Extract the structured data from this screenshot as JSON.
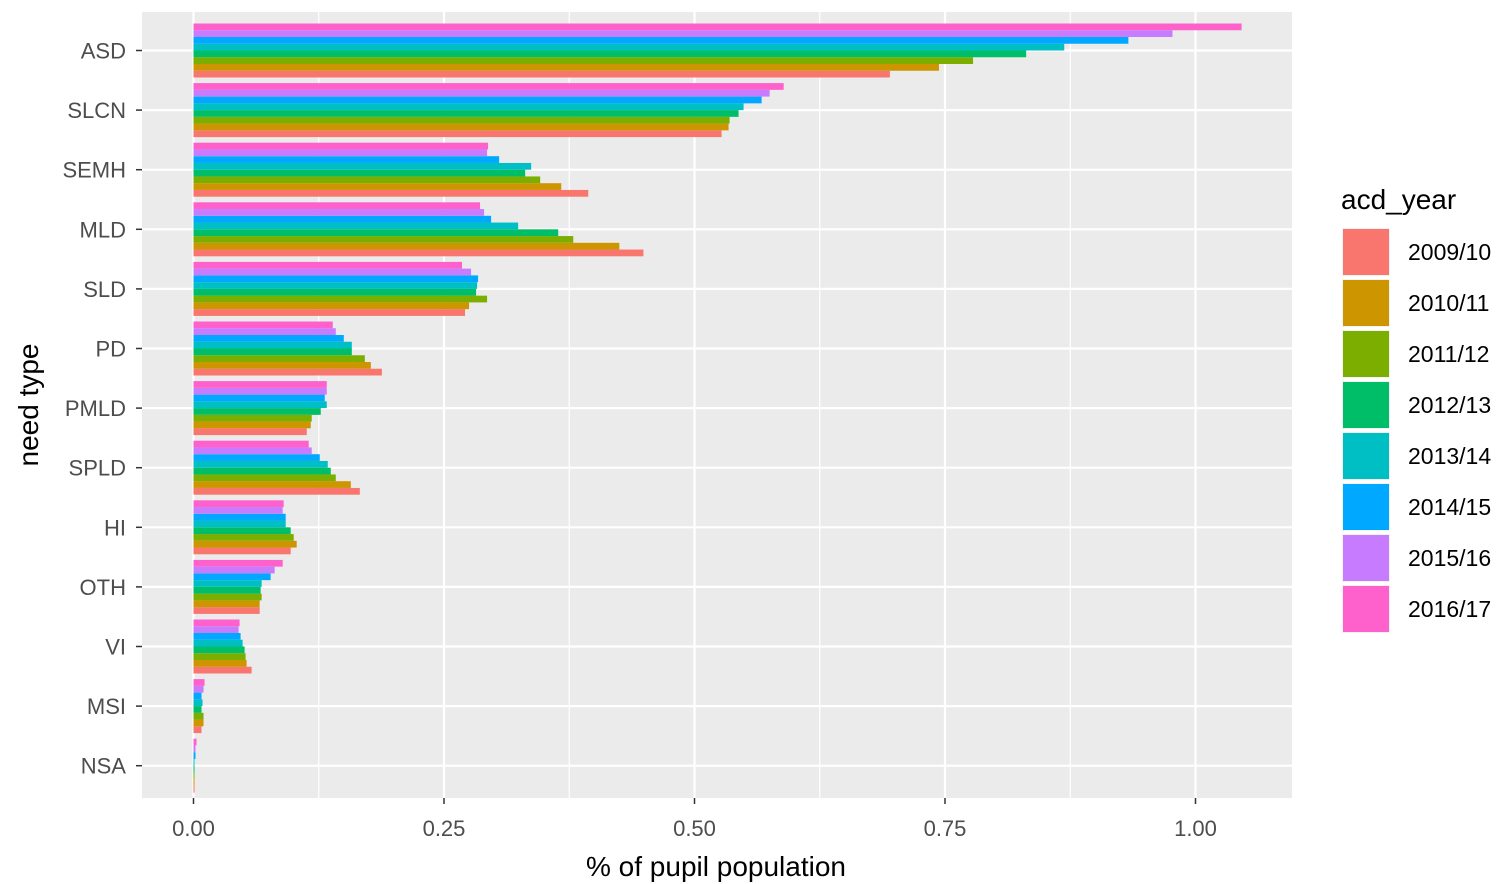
{
  "chart_data": {
    "type": "bar",
    "orientation": "horizontal",
    "xlabel": "% of pupil population",
    "ylabel": "need type",
    "xlim": [
      -0.0125,
      1.2
    ],
    "xticks": [
      0.0,
      0.25,
      0.5,
      0.75,
      1.0
    ],
    "xtick_labels": [
      "0.00",
      "0.25",
      "0.50",
      "0.75",
      "1.00"
    ],
    "grid": true,
    "background": "#ebebeb",
    "legend_position": "right",
    "legend": {
      "title": "acd_year",
      "entries": [
        "2009/10",
        "2010/11",
        "2011/12",
        "2012/13",
        "2013/14",
        "2014/15",
        "2015/16",
        "2016/17"
      ]
    },
    "categories": [
      "ASD",
      "SLCN",
      "SEMH",
      "MLD",
      "SLD",
      "PD",
      "PMLD",
      "SPLD",
      "HI",
      "OTH",
      "VI",
      "MSI",
      "NSA"
    ],
    "series": [
      {
        "name": "2009/10",
        "color": "#F8766D",
        "values": [
          0.695,
          0.527,
          0.394,
          0.449,
          0.271,
          0.188,
          0.113,
          0.166,
          0.097,
          0.066,
          0.058,
          0.008,
          0.001
        ]
      },
      {
        "name": "2010/11",
        "color": "#CD9600",
        "values": [
          0.744,
          0.534,
          0.367,
          0.425,
          0.275,
          0.177,
          0.117,
          0.157,
          0.103,
          0.066,
          0.053,
          0.01,
          0.001
        ]
      },
      {
        "name": "2011/12",
        "color": "#7CAE00",
        "values": [
          0.778,
          0.535,
          0.346,
          0.379,
          0.293,
          0.171,
          0.118,
          0.142,
          0.1,
          0.068,
          0.052,
          0.01,
          0.001
        ]
      },
      {
        "name": "2012/13",
        "color": "#00BE67",
        "values": [
          0.831,
          0.544,
          0.331,
          0.364,
          0.282,
          0.158,
          0.127,
          0.137,
          0.097,
          0.067,
          0.051,
          0.008,
          0.001
        ]
      },
      {
        "name": "2013/14",
        "color": "#00BFC4",
        "values": [
          0.869,
          0.549,
          0.337,
          0.324,
          0.283,
          0.158,
          0.133,
          0.134,
          0.092,
          0.068,
          0.049,
          0.009,
          0.001
        ]
      },
      {
        "name": "2014/15",
        "color": "#00A9FF",
        "values": [
          0.933,
          0.567,
          0.305,
          0.297,
          0.284,
          0.15,
          0.131,
          0.126,
          0.092,
          0.077,
          0.047,
          0.008,
          0.002
        ]
      },
      {
        "name": "2015/16",
        "color": "#C77CFF",
        "values": [
          0.977,
          0.575,
          0.293,
          0.29,
          0.277,
          0.142,
          0.133,
          0.118,
          0.089,
          0.081,
          0.045,
          0.01,
          0.002
        ]
      },
      {
        "name": "2016/17",
        "color": "#FF61CC",
        "values": [
          1.046,
          0.589,
          0.294,
          0.286,
          0.268,
          0.139,
          0.133,
          0.115,
          0.09,
          0.089,
          0.046,
          0.011,
          0.003
        ]
      }
    ]
  }
}
